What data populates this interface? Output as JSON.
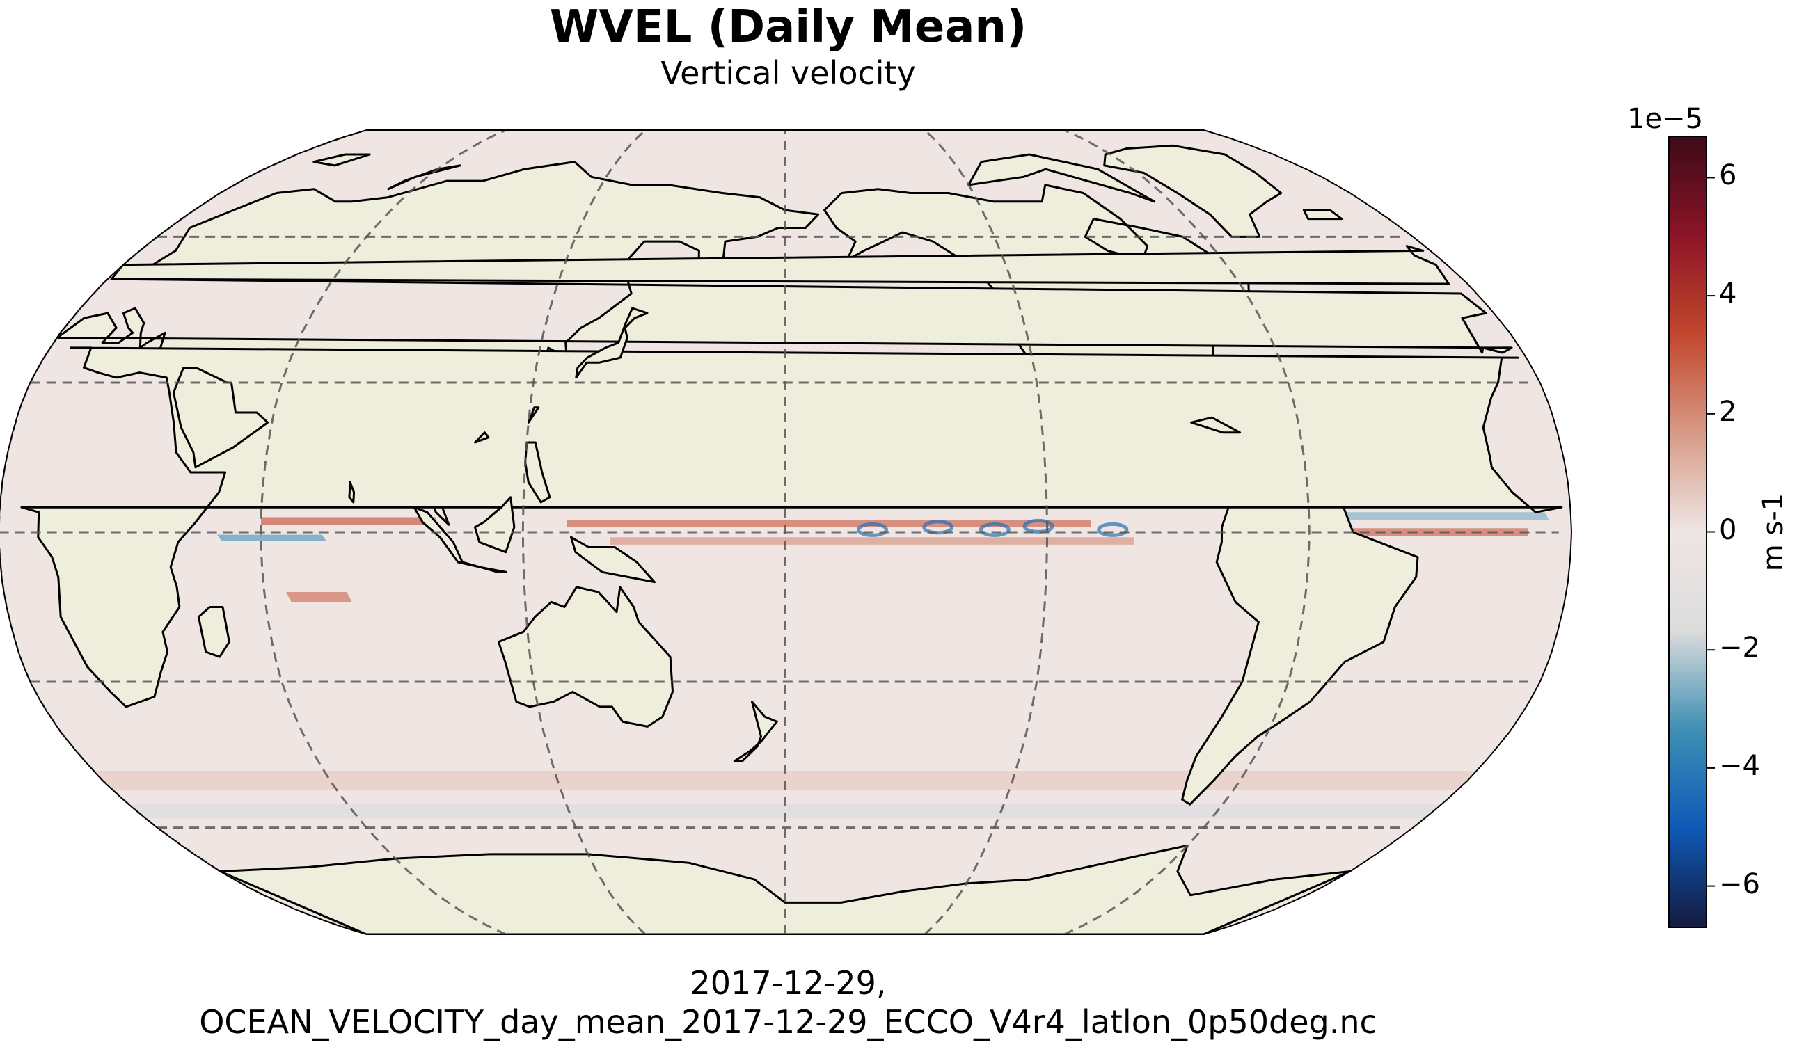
{
  "header": {
    "title": "WVEL (Daily Mean)",
    "subtitle": "Vertical velocity"
  },
  "footer": {
    "line1": "2017-12-29,",
    "line2": "OCEAN_VELOCITY_day_mean_2017-12-29_ECCO_V4r4_latlon_0p50deg.nc"
  },
  "map": {
    "projection": "Robinson",
    "central_longitude": 180,
    "land_color": "#efeedd",
    "ocean_base_color": "#efe6e4",
    "gridlines": "dashed",
    "parallels": [
      -60,
      -30,
      0,
      30,
      60
    ],
    "meridians": [
      -120,
      -60,
      0,
      60,
      120,
      180
    ]
  },
  "colorbar": {
    "exponent_label": "1e−5",
    "unit_label": "m s-1",
    "range": [
      -6.7,
      6.7
    ],
    "ticks": [
      {
        "value": 6,
        "label": "6"
      },
      {
        "value": 4,
        "label": "4"
      },
      {
        "value": 2,
        "label": "2"
      },
      {
        "value": 0,
        "label": "0"
      },
      {
        "value": -2,
        "label": "−2"
      },
      {
        "value": -4,
        "label": "−4"
      },
      {
        "value": -6,
        "label": "−6"
      }
    ],
    "colors": [
      "#151a3f",
      "#0e59b5",
      "#3d8fb5",
      "#dcdcdc",
      "#efe6e4",
      "#d79a86",
      "#c2472c",
      "#8c1427",
      "#3c0a17"
    ]
  }
}
